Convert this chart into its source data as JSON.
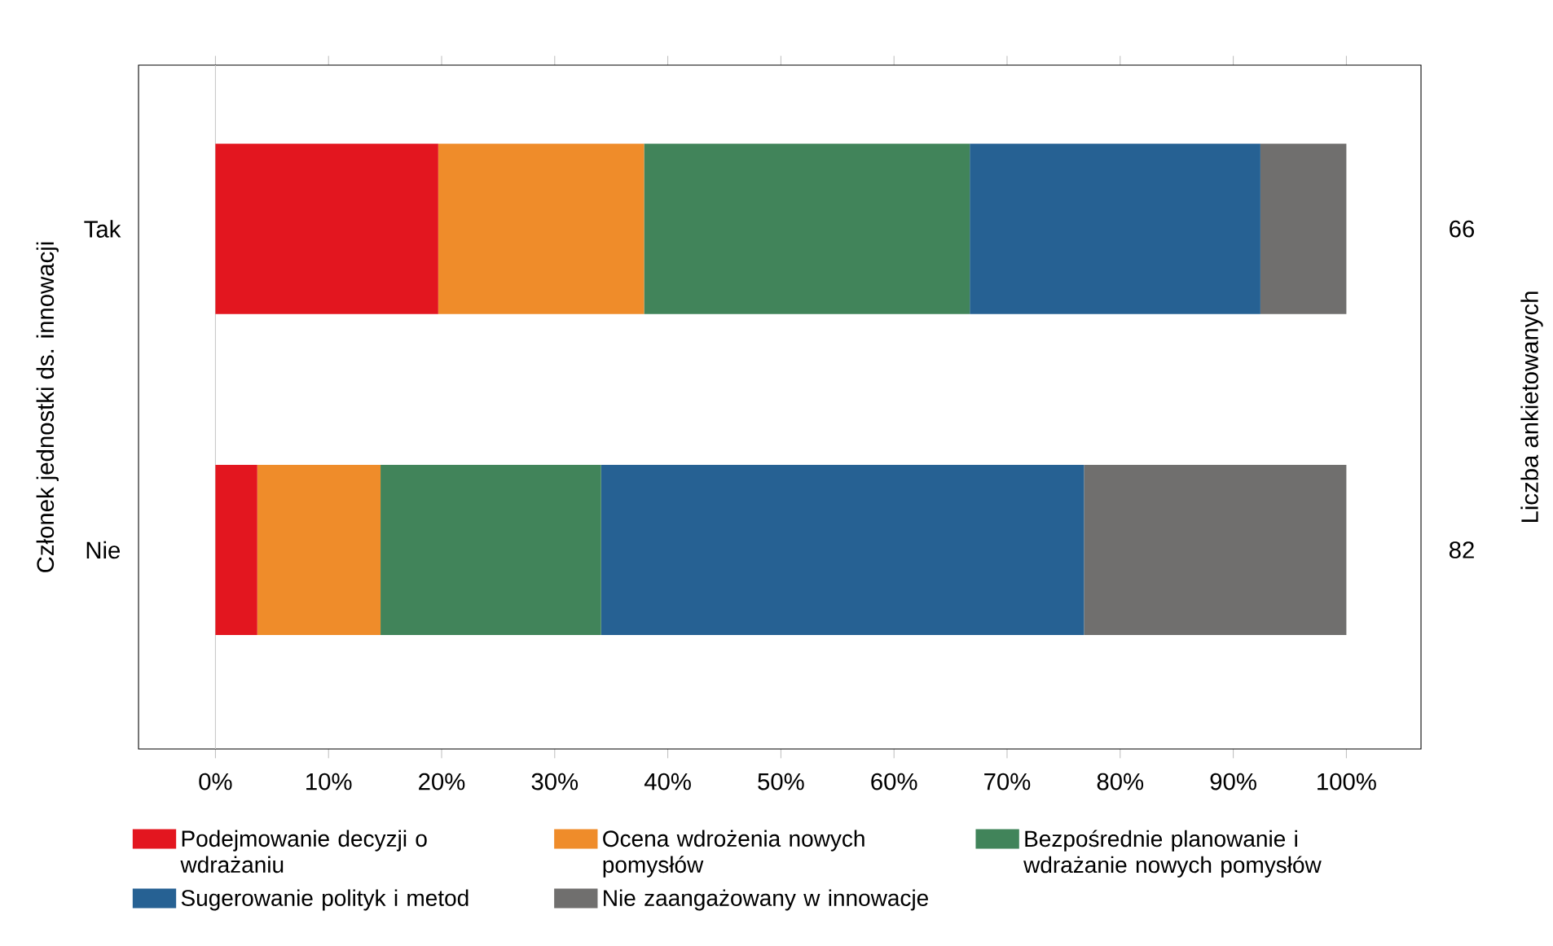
{
  "chart_data": {
    "type": "bar",
    "orientation": "horizontal",
    "stacked": true,
    "ylabel": "Członek jednostki ds. innowacji",
    "y2label": "Liczba ankietowanych",
    "categories": [
      "Tak",
      "Nie"
    ],
    "series": [
      {
        "name": "Podejmowanie decyzji o wdrażaniu",
        "color": "#e3161f",
        "values": [
          19.7,
          3.7
        ]
      },
      {
        "name": "Ocena wdrożenia nowych pomysłów",
        "color": "#ef8c2a",
        "values": [
          18.2,
          10.9
        ]
      },
      {
        "name": "Bezpośrednie planowanie i wdrażanie nowych pomysłów",
        "color": "#41845a",
        "values": [
          28.8,
          19.5
        ]
      },
      {
        "name": "Sugerowanie polityk i metod",
        "color": "#266193",
        "values": [
          25.7,
          42.7
        ]
      },
      {
        "name": "Nie zaangażowany w innowacje",
        "color": "#706f6e",
        "values": [
          7.6,
          23.2
        ]
      }
    ],
    "xlim": [
      -6.8,
      106.6
    ],
    "xticks": [
      {
        "value": 0,
        "label": "0%"
      },
      {
        "value": 10,
        "label": "10%"
      },
      {
        "value": 20,
        "label": "20%"
      },
      {
        "value": 30,
        "label": "30%"
      },
      {
        "value": 40,
        "label": "40%"
      },
      {
        "value": 50,
        "label": "50%"
      },
      {
        "value": 60,
        "label": "60%"
      },
      {
        "value": 70,
        "label": "70%"
      },
      {
        "value": 80,
        "label": "80%"
      },
      {
        "value": 90,
        "label": "90%"
      },
      {
        "value": 100,
        "label": "100%"
      }
    ],
    "ref_lines": [
      {
        "axis": "x",
        "value": 0,
        "color": "#c8c8c8"
      }
    ],
    "annotations": [
      "66",
      "82"
    ],
    "grid": false,
    "legend": "bottom"
  }
}
